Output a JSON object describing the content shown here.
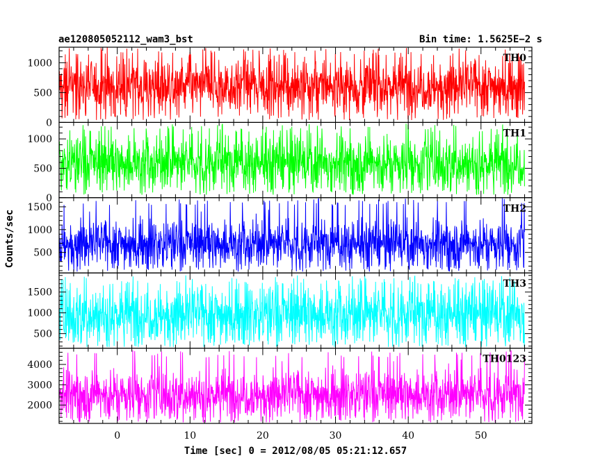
{
  "header": {
    "title": "ae120805052112_wam3_bst",
    "bin_time": "Bin time: 1.5625E−2 s"
  },
  "chart_data": {
    "type": "line",
    "ylabel": "Counts/sec",
    "xlabel": "Time [sec] 0 = 2012/08/05 05:21:12.657",
    "xlim": [
      -8,
      57
    ],
    "x_start": -8.0,
    "x_end": 56.0,
    "bin_time": 0.015625,
    "x_ticks": [
      0,
      10,
      20,
      30,
      40,
      50
    ],
    "panels": [
      {
        "name": "TH0",
        "color": "#ff0000",
        "ylim": [
          0,
          1260
        ],
        "y_ticks": [
          0,
          500,
          1000
        ],
        "baseline": 620,
        "low": 40,
        "high": 1260,
        "spread": 230
      },
      {
        "name": "TH1",
        "color": "#00ff00",
        "ylim": [
          0,
          1280
        ],
        "y_ticks": [
          0,
          500,
          1000
        ],
        "baseline": 600,
        "low": 50,
        "high": 1260,
        "spread": 230
      },
      {
        "name": "TH2",
        "color": "#0000ff",
        "ylim": [
          50,
          1700
        ],
        "y_ticks": [
          500,
          1000,
          1500
        ],
        "baseline": 700,
        "low": 80,
        "high": 1690,
        "spread": 260
      },
      {
        "name": "TH3",
        "color": "#00ffff",
        "ylim": [
          150,
          1960
        ],
        "y_ticks": [
          500,
          1000,
          1500
        ],
        "baseline": 980,
        "low": 180,
        "high": 1900,
        "spread": 360
      },
      {
        "name": "TH0123",
        "color": "#ff00ff",
        "ylim": [
          1100,
          4800
        ],
        "y_ticks": [
          2000,
          3000,
          4000
        ],
        "baseline": 2550,
        "low": 1150,
        "high": 4700,
        "spread": 600
      }
    ]
  }
}
